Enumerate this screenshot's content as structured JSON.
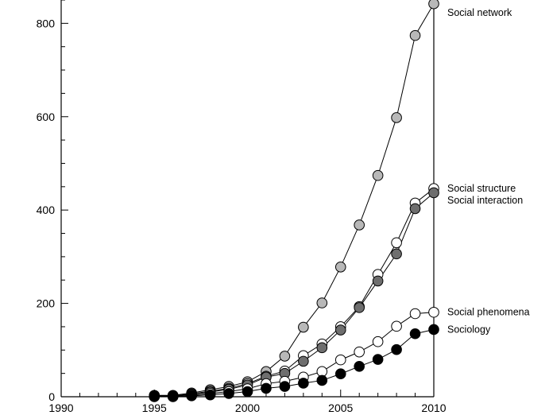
{
  "chart_data": {
    "type": "line",
    "title": "",
    "xlabel": "",
    "ylabel": "",
    "xlim": [
      1990,
      2010
    ],
    "ylim": [
      0,
      850
    ],
    "x_ticks": [
      1990,
      1995,
      2000,
      2005,
      2010
    ],
    "y_ticks": [
      0,
      200,
      400,
      600,
      800
    ],
    "grid": false,
    "legend": "series labels at right end of lines",
    "x": [
      1995,
      1996,
      1997,
      1998,
      1999,
      2000,
      2001,
      2002,
      2003,
      2004,
      2005,
      2006,
      2007,
      2008,
      2009,
      2010
    ],
    "series": [
      {
        "name": "Social network",
        "marker_fill": "#b8b8b8",
        "values": [
          3,
          3,
          8,
          15,
          22,
          32,
          54,
          87,
          149,
          201,
          278,
          368,
          474,
          598,
          774,
          842
        ]
      },
      {
        "name": "Social structure",
        "marker_fill": "#ffffff",
        "values": [
          2,
          2,
          6,
          12,
          18,
          28,
          44,
          55,
          88,
          113,
          150,
          193,
          262,
          330,
          415,
          446
        ]
      },
      {
        "name": "Social interaction",
        "marker_fill": "#6e6e6e",
        "values": [
          2,
          2,
          5,
          10,
          16,
          25,
          42,
          50,
          76,
          105,
          143,
          191,
          248,
          306,
          403,
          437
        ]
      },
      {
        "name": "Social phenomena",
        "marker_fill": "#ffffff",
        "values": [
          1,
          1,
          3,
          7,
          11,
          17,
          28,
          33,
          42,
          54,
          79,
          96,
          118,
          151,
          178,
          181
        ]
      },
      {
        "name": "Sociology",
        "marker_fill": "#000000",
        "values": [
          0,
          0,
          2,
          4,
          7,
          11,
          18,
          22,
          29,
          35,
          49,
          65,
          80,
          101,
          135,
          144
        ]
      }
    ]
  }
}
